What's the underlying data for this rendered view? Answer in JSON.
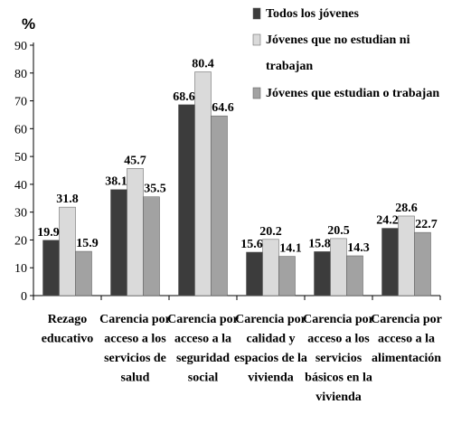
{
  "chart_data": {
    "type": "bar",
    "unit_label": "%",
    "categories": [
      [
        "Rezago",
        "educativo"
      ],
      [
        "Carencia por",
        "acceso a los",
        "servicios de",
        "salud"
      ],
      [
        "Carencia por",
        "acceso a la",
        "seguridad",
        "social"
      ],
      [
        "Carencia por",
        "calidad y",
        "espacios de la",
        "vivienda"
      ],
      [
        "Carencia por",
        "acceso a los",
        "servicios",
        "básicos en la",
        "vivienda"
      ],
      [
        "Carencia por",
        "acceso a la",
        "alimentación"
      ]
    ],
    "series": [
      {
        "name": [
          "Todos los jóvenes"
        ],
        "values": [
          19.9,
          38.1,
          68.6,
          15.6,
          15.8,
          24.2
        ]
      },
      {
        "name": [
          "Jóvenes que no estudian ni",
          "trabajan"
        ],
        "values": [
          31.8,
          45.7,
          80.4,
          20.2,
          20.5,
          28.6
        ]
      },
      {
        "name": [
          "Jóvenes que estudian o trabajan"
        ],
        "values": [
          15.9,
          35.5,
          64.6,
          14.1,
          14.3,
          22.7
        ]
      }
    ],
    "value_labels": [
      [
        "19.9",
        "38.1",
        "68.6",
        "15.6",
        "15.8",
        "24.2"
      ],
      [
        "31.8",
        "45.7",
        "80.4",
        "20.2",
        "20.5",
        "28.6"
      ],
      [
        "15.9",
        "35.5",
        "64.6",
        "14.1",
        "14.3",
        "22.7"
      ]
    ],
    "y_ticks": [
      "0",
      "10",
      "20",
      "30",
      "40",
      "50",
      "60",
      "70",
      "80",
      "90"
    ],
    "ylim": [
      0,
      90
    ],
    "grid": false,
    "legend_position": "top-right",
    "colors": [
      "#3c3c3c",
      "#dadada",
      "#a2a2a2"
    ]
  }
}
